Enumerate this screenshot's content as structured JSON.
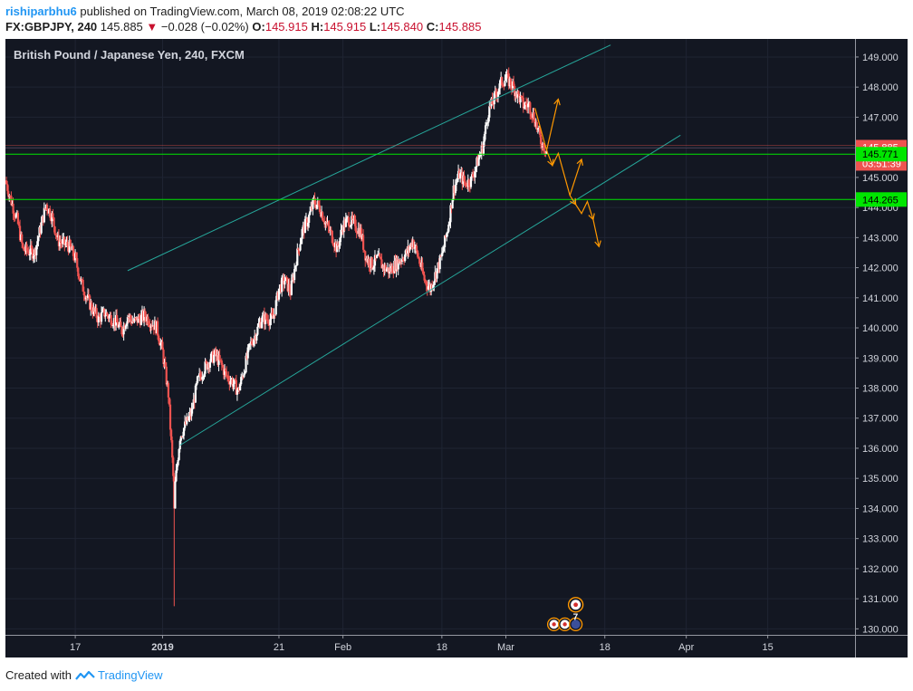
{
  "header": {
    "user": "rishiparbhu6",
    "published": "published on TradingView.com, March 08, 2019 02:08:22 UTC",
    "symbol": "FX:GBPJPY, 240",
    "last": "145.885",
    "change": "−0.028 (−0.02%)",
    "o_label": "O:",
    "o_value": "145.915",
    "h_label": "H:",
    "h_value": "145.915",
    "l_label": "L:",
    "l_value": "145.840",
    "c_label": "C:",
    "c_value": "145.885"
  },
  "footer": {
    "created": "Created with",
    "brand": "TradingView"
  },
  "colors": {
    "background": "#131722",
    "up": "#ffffff",
    "down": "#ef5350",
    "channel": "#26a69a",
    "projection": "#ff9800",
    "level_line": "#00e600",
    "price_badge": "#ef5350",
    "level_badge": "#00e600"
  },
  "chart_data": {
    "type": "candlestick",
    "title": "British Pound / Japanese Yen, 240, FXCM",
    "ylim": [
      129.8,
      149.6
    ],
    "yticks": [
      "149.000",
      "148.000",
      "147.000",
      "146.000",
      "145.000",
      "144.000",
      "143.000",
      "142.000",
      "141.000",
      "140.000",
      "139.000",
      "138.000",
      "137.000",
      "136.000",
      "135.000",
      "134.000",
      "133.000",
      "132.000",
      "131.000",
      "130.000"
    ],
    "xticks": [
      {
        "label": "17",
        "x": "2018-12-17"
      },
      {
        "label": "2019",
        "x": "2019-01-01",
        "bold": true
      },
      {
        "label": "21",
        "x": "2019-01-21"
      },
      {
        "label": "Feb",
        "x": "2019-02-01"
      },
      {
        "label": "18",
        "x": "2019-02-18"
      },
      {
        "label": "Mar",
        "x": "2019-03-01"
      },
      {
        "label": "18",
        "x": "2019-03-18"
      },
      {
        "label": "Apr",
        "x": "2019-04-01"
      },
      {
        "label": "15",
        "x": "2019-04-15"
      }
    ],
    "xlim": [
      "2018-12-05",
      "2019-04-30"
    ],
    "last_price": {
      "value": 145.885,
      "label": "145.885",
      "countdown": "03:51:39"
    },
    "levels": [
      {
        "value": 145.771,
        "label": "145.771"
      },
      {
        "value": 144.265,
        "label": "144.265"
      }
    ],
    "close_path": [
      [
        "2018-12-05",
        144.9
      ],
      [
        "2018-12-06",
        144.2
      ],
      [
        "2018-12-07",
        143.6
      ],
      [
        "2018-12-08",
        142.6
      ],
      [
        "2018-12-10",
        142.5
      ],
      [
        "2018-12-11",
        143.3
      ],
      [
        "2018-12-12",
        144.1
      ],
      [
        "2018-12-13",
        143.7
      ],
      [
        "2018-12-14",
        142.9
      ],
      [
        "2018-12-16",
        142.7
      ],
      [
        "2018-12-17",
        142.3
      ],
      [
        "2018-12-18",
        141.5
      ],
      [
        "2018-12-19",
        141.0
      ],
      [
        "2018-12-20",
        140.6
      ],
      [
        "2018-12-21",
        140.3
      ],
      [
        "2018-12-22",
        140.5
      ],
      [
        "2018-12-24",
        140.2
      ],
      [
        "2018-12-25",
        139.9
      ],
      [
        "2018-12-26",
        140.4
      ],
      [
        "2018-12-27",
        140.2
      ],
      [
        "2018-12-28",
        140.3
      ],
      [
        "2018-12-29",
        140.4
      ],
      [
        "2018-12-31",
        140.0
      ],
      [
        "2019-01-01",
        139.2
      ],
      [
        "2019-01-02",
        137.8
      ],
      [
        "2019-01-03",
        134.5
      ],
      [
        "2019-01-04",
        136.4
      ],
      [
        "2019-01-05",
        136.8
      ],
      [
        "2019-01-06",
        137.2
      ],
      [
        "2019-01-07",
        138.2
      ],
      [
        "2019-01-08",
        138.6
      ],
      [
        "2019-01-09",
        138.9
      ],
      [
        "2019-01-10",
        139.1
      ],
      [
        "2019-01-11",
        138.8
      ],
      [
        "2019-01-12",
        138.4
      ],
      [
        "2019-01-13",
        138.2
      ],
      [
        "2019-01-14",
        137.9
      ],
      [
        "2019-01-15",
        138.6
      ],
      [
        "2019-01-16",
        139.4
      ],
      [
        "2019-01-17",
        139.8
      ],
      [
        "2019-01-18",
        140.3
      ],
      [
        "2019-01-20",
        140.3
      ],
      [
        "2019-01-21",
        141.3
      ],
      [
        "2019-01-22",
        141.6
      ],
      [
        "2019-01-23",
        141.2
      ],
      [
        "2019-01-24",
        142.3
      ],
      [
        "2019-01-25",
        143.2
      ],
      [
        "2019-01-26",
        143.6
      ],
      [
        "2019-01-27",
        144.2
      ],
      [
        "2019-01-28",
        144.0
      ],
      [
        "2019-01-29",
        143.5
      ],
      [
        "2019-01-30",
        143.1
      ],
      [
        "2019-01-31",
        142.6
      ],
      [
        "2019-02-01",
        143.4
      ],
      [
        "2019-02-02",
        143.6
      ],
      [
        "2019-02-04",
        143.2
      ],
      [
        "2019-02-05",
        142.3
      ],
      [
        "2019-02-06",
        142.1
      ],
      [
        "2019-02-07",
        142.3
      ],
      [
        "2019-02-08",
        142.0
      ],
      [
        "2019-02-09",
        141.9
      ],
      [
        "2019-02-11",
        142.3
      ],
      [
        "2019-02-12",
        142.5
      ],
      [
        "2019-02-13",
        142.9
      ],
      [
        "2019-02-14",
        142.3
      ],
      [
        "2019-02-15",
        141.6
      ],
      [
        "2019-02-16",
        141.3
      ],
      [
        "2019-02-18",
        142.4
      ],
      [
        "2019-02-19",
        143.3
      ],
      [
        "2019-02-20",
        144.6
      ],
      [
        "2019-02-21",
        145.1
      ],
      [
        "2019-02-22",
        144.8
      ],
      [
        "2019-02-23",
        144.9
      ],
      [
        "2019-02-25",
        146.0
      ],
      [
        "2019-02-26",
        147.2
      ],
      [
        "2019-02-27",
        147.6
      ],
      [
        "2019-02-28",
        148.1
      ],
      [
        "2019-03-01",
        148.3
      ],
      [
        "2019-03-02",
        148.1
      ],
      [
        "2019-03-04",
        147.4
      ],
      [
        "2019-03-05",
        147.4
      ],
      [
        "2019-03-06",
        146.9
      ],
      [
        "2019-03-07",
        146.2
      ],
      [
        "2019-03-08",
        145.885
      ]
    ],
    "channel": [
      {
        "name": "upper",
        "from": [
          "2018-12-26",
          141.9
        ],
        "to": [
          "2019-03-19",
          149.4
        ]
      },
      {
        "name": "lower",
        "from": [
          "2019-01-04",
          136.1
        ],
        "to": [
          "2019-03-31",
          146.4
        ]
      }
    ],
    "projection_path": [
      [
        "2019-03-06",
        147.3
      ],
      [
        "2019-03-08",
        145.9
      ],
      [
        "2019-03-09",
        145.4
      ],
      [
        "2019-03-10",
        145.8
      ],
      [
        "2019-03-12",
        144.4
      ],
      [
        "2019-03-13",
        144.1
      ],
      [
        "2019-03-14",
        143.8
      ],
      [
        "2019-03-15",
        144.2
      ],
      [
        "2019-03-16",
        143.6
      ],
      [
        "2019-03-17",
        142.7
      ]
    ],
    "projection_branches": [
      {
        "from": [
          "2019-03-08",
          145.9
        ],
        "to": [
          "2019-03-10",
          147.6
        ]
      },
      {
        "from": [
          "2019-03-12",
          144.4
        ],
        "to": [
          "2019-03-14",
          145.6
        ]
      }
    ],
    "events": [
      {
        "x": "2019-03-13",
        "y": 130.8,
        "icon": "jp-flag-event-icon"
      },
      {
        "x": "2019-03-13",
        "y": 130.15,
        "icon": "gb-flag-event-icon",
        "count": "7"
      }
    ]
  }
}
